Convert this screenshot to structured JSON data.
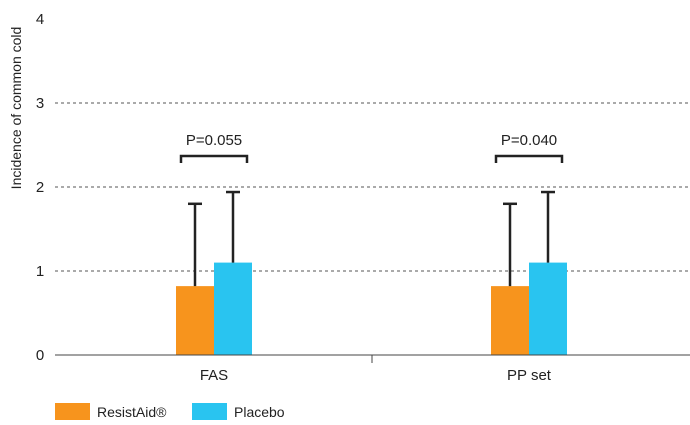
{
  "chart_data": {
    "type": "bar",
    "title": "",
    "xlabel": "",
    "ylabel": "Incidence of common cold",
    "ylim": [
      0,
      4
    ],
    "yticks": [
      0,
      1,
      2,
      3,
      4
    ],
    "grid": "dashed horizontal",
    "categories": [
      "FAS",
      "PP set"
    ],
    "series": [
      {
        "name": "ResistAid®",
        "color": "#f7941d",
        "values": [
          0.82,
          0.82
        ],
        "errors": [
          0.98,
          0.98
        ]
      },
      {
        "name": "Placebo",
        "color": "#29c4f0",
        "values": [
          1.1,
          1.1
        ],
        "errors": [
          0.84,
          0.84
        ]
      }
    ],
    "annotations": [
      {
        "category": "FAS",
        "text": "P=0.055"
      },
      {
        "category": "PP set",
        "text": "P=0.040"
      }
    ],
    "legend": "bottom-left"
  }
}
